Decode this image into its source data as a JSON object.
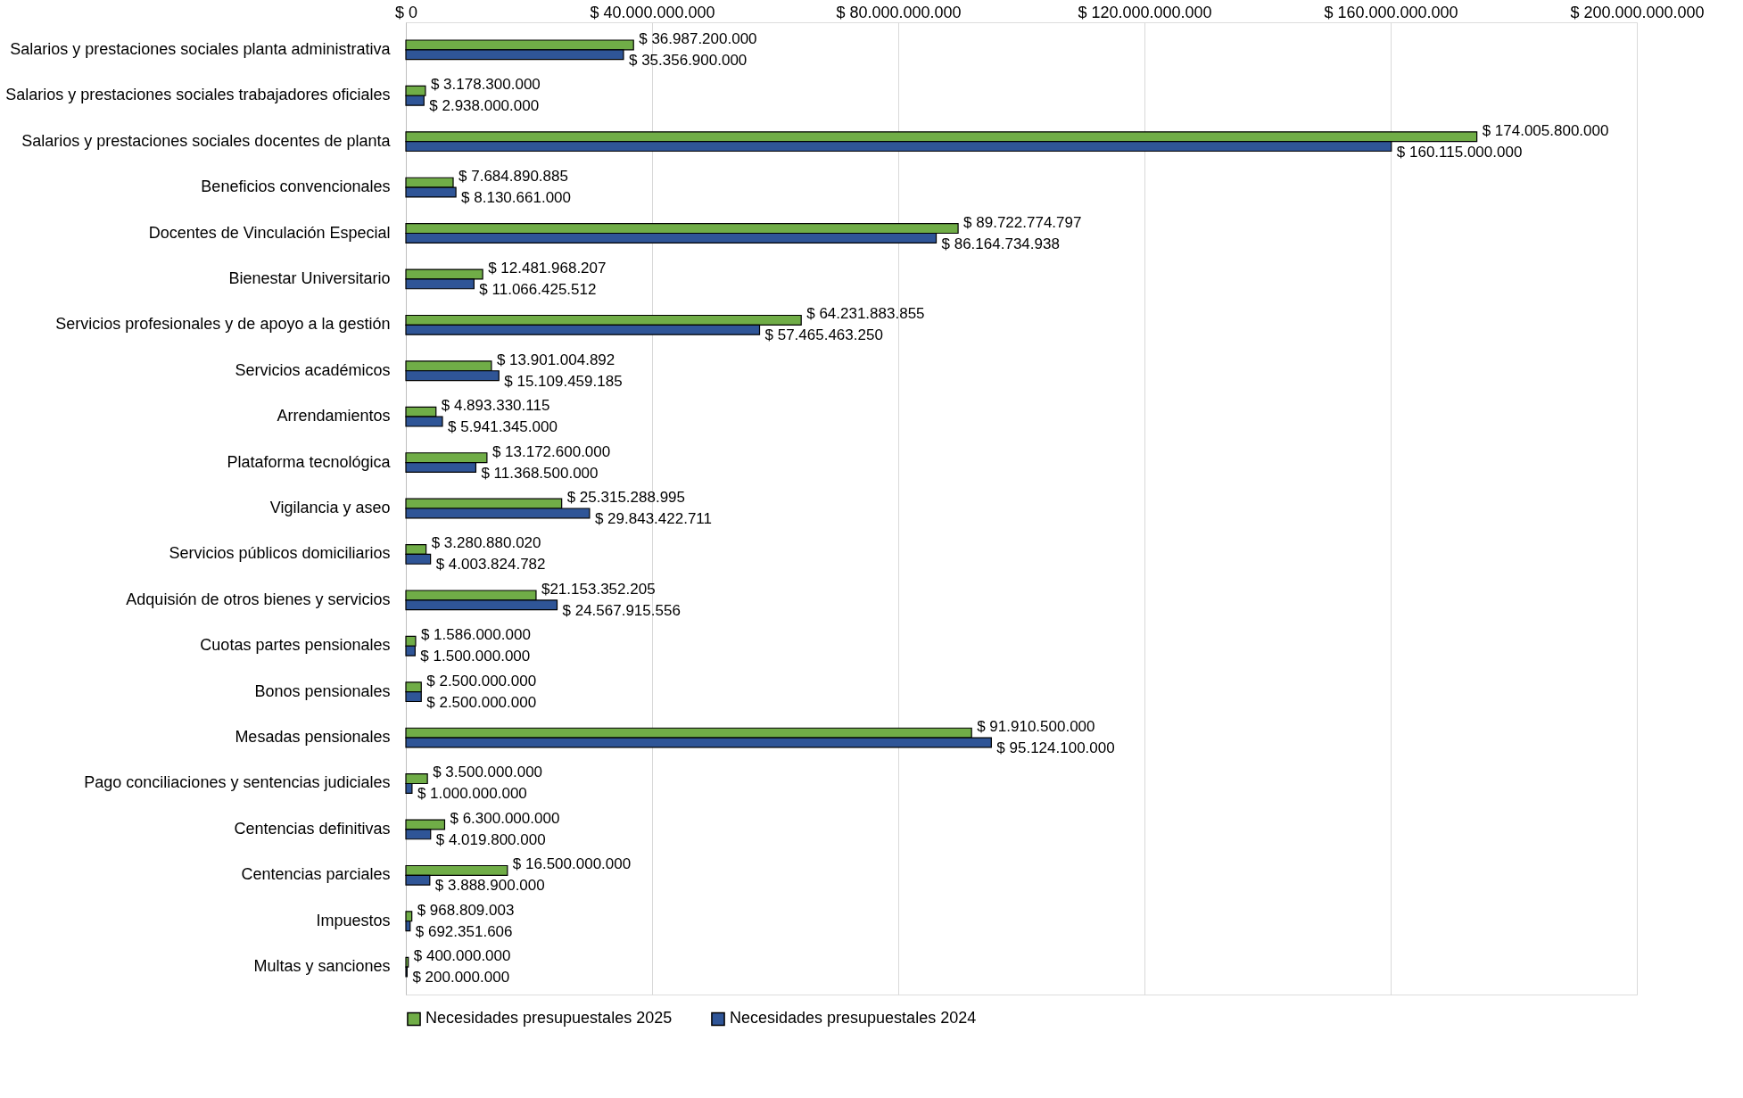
{
  "chart_data": {
    "type": "bar",
    "orientation": "horizontal",
    "categories": [
      "Salarios y prestaciones sociales planta administrativa",
      "Salarios y prestaciones sociales trabajadores oficiales",
      "Salarios y prestaciones sociales docentes de planta",
      "Beneficios convencionales",
      "Docentes de Vinculación Especial",
      "Bienestar Universitario",
      "Servicios profesionales y de apoyo a la gestión",
      "Servicios académicos",
      "Arrendamientos",
      "Plataforma tecnológica",
      "Vigilancia y aseo",
      "Servicios públicos domiciliarios",
      "Adquisión de otros bienes y servicios",
      "Cuotas partes pensionales",
      "Bonos pensionales",
      "Mesadas pensionales",
      "Pago conciliaciones y sentencias judiciales",
      "Centencias definitivas",
      "Centencias parciales",
      "Impuestos",
      "Multas y sanciones"
    ],
    "series": [
      {
        "name": "Necesidades presupuestales 2025",
        "color": "#70ad47",
        "values": [
          36987200000,
          3178300000,
          174005800000,
          7684890885,
          89722774797,
          12481968207,
          64231883855,
          13901004892,
          4893330115,
          13172600000,
          25315288995,
          3280880020,
          21153352205,
          1586000000,
          2500000000,
          91910500000,
          3500000000,
          6300000000,
          16500000000,
          968809003,
          400000000
        ],
        "value_labels": [
          "$ 36.987.200.000",
          "$ 3.178.300.000",
          "$ 174.005.800.000",
          "$ 7.684.890.885",
          "$ 89.722.774.797",
          "$ 12.481.968.207",
          "$ 64.231.883.855",
          "$ 13.901.004.892",
          "$ 4.893.330.115",
          "$ 13.172.600.000",
          "$ 25.315.288.995",
          "$ 3.280.880.020",
          "$21.153.352.205",
          "$ 1.586.000.000",
          "$ 2.500.000.000",
          "$ 91.910.500.000",
          "$ 3.500.000.000",
          "$ 6.300.000.000",
          "$ 16.500.000.000",
          "$ 968.809.003",
          "$ 400.000.000"
        ]
      },
      {
        "name": "Necesidades presupuestales 2024",
        "color": "#2f5597",
        "values": [
          35356900000,
          2938000000,
          160115000000,
          8130661000,
          86164734938,
          11066425512,
          57465463250,
          15109459185,
          5941345000,
          11368500000,
          29843422711,
          4003824782,
          24567915556,
          1500000000,
          2500000000,
          95124100000,
          1000000000,
          4019800000,
          3888900000,
          692351606,
          200000000
        ],
        "value_labels": [
          "$ 35.356.900.000",
          "$ 2.938.000.000",
          "$ 160.115.000.000",
          "$ 8.130.661.000",
          "$ 86.164.734.938",
          "$ 11.066.425.512",
          "$ 57.465.463.250",
          "$ 15.109.459.185",
          "$ 5.941.345.000",
          "$ 11.368.500.000",
          "$ 29.843.422.711",
          "$ 4.003.824.782",
          "$ 24.567.915.556",
          "$ 1.500.000.000",
          "$ 2.500.000.000",
          "$ 95.124.100.000",
          "$ 1.000.000.000",
          "$ 4.019.800.000",
          "$ 3.888.900.000",
          "$ 692.351.606",
          "$ 200.000.000"
        ]
      }
    ],
    "xlim": [
      0,
      200000000000
    ],
    "xticks": [
      {
        "value": 0,
        "label": "$ 0"
      },
      {
        "value": 40000000000,
        "label": "$ 40.000.000.000"
      },
      {
        "value": 80000000000,
        "label": "$ 80.000.000.000"
      },
      {
        "value": 120000000000,
        "label": "$ 120.000.000.000"
      },
      {
        "value": 160000000000,
        "label": "$ 160.000.000.000"
      },
      {
        "value": 200000000000,
        "label": "$ 200.000.000.000"
      }
    ],
    "grid": "x",
    "legend": "bottom"
  }
}
